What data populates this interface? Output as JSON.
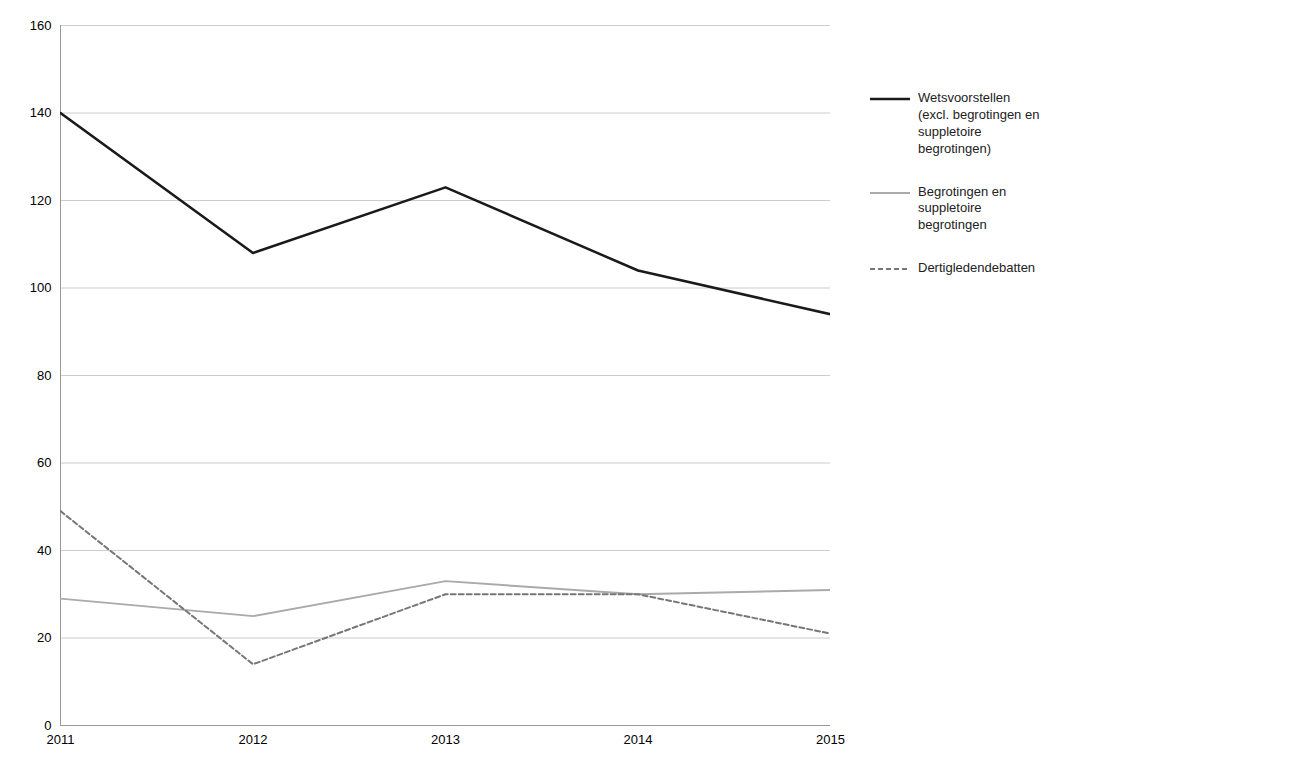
{
  "chart_data": {
    "type": "line",
    "x": [
      2011,
      2012,
      2013,
      2014,
      2015
    ],
    "xlim": [
      2011,
      2015
    ],
    "xticks": [
      2011,
      2012,
      2013,
      2014,
      2015
    ],
    "ylim": [
      0,
      160
    ],
    "yticks": [
      0,
      20,
      40,
      60,
      80,
      100,
      120,
      140,
      160
    ],
    "grid": true,
    "legend": "right",
    "series": [
      {
        "name": "Wetsvoorstellen\n(excl. begrotingen en\nsuppletoire\nbegrotingen)",
        "color": "#1a1a1a",
        "line_style": "solid",
        "values": [
          140,
          108,
          123,
          104,
          94
        ]
      },
      {
        "name": "Begrotingen en\nsuppletoire\nbegrotingen",
        "color": "#aaaaaa",
        "line_style": "solid",
        "values": [
          29,
          25,
          33,
          30,
          31
        ]
      },
      {
        "name": "Dertigledendebatten",
        "color": "#777777",
        "line_style": "dashed",
        "values": [
          49,
          14,
          30,
          30,
          21
        ]
      }
    ]
  }
}
